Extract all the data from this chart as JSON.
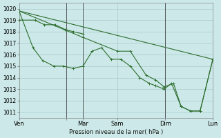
{
  "background_color": "#cce8e8",
  "grid_color": "#aacccc",
  "line_color": "#2d6e2d",
  "marker_color": "#2d6e2d",
  "xlabel": "Pression niveau de la mer( hPa )",
  "ylim": [
    1010.5,
    1020.5
  ],
  "yticks": [
    1011,
    1012,
    1013,
    1014,
    1015,
    1016,
    1017,
    1018,
    1019,
    1020
  ],
  "xlim": [
    0,
    1.0
  ],
  "xtick_positions": [
    0.0,
    0.245,
    0.33,
    0.508,
    0.754,
    1.0
  ],
  "xtick_labels": [
    "Ven",
    "",
    "Mar",
    "Sam",
    "Dim",
    "Lun"
  ],
  "vlines_x": [
    0.245,
    0.33,
    0.754
  ],
  "series_diagonal": {
    "x": [
      0.0,
      1.0
    ],
    "y": [
      1019.8,
      1015.6
    ]
  },
  "series_main": {
    "x": [
      0.0,
      0.072,
      0.121,
      0.18,
      0.23,
      0.279,
      0.33,
      0.377,
      0.426,
      0.475,
      0.525,
      0.574,
      0.623,
      0.672,
      0.705,
      0.748,
      0.787,
      0.836,
      0.885,
      0.934,
      1.0
    ],
    "y": [
      1019.8,
      1016.6,
      1015.5,
      1015.0,
      1015.0,
      1014.8,
      1015.0,
      1016.3,
      1016.6,
      1015.6,
      1015.6,
      1015.0,
      1014.0,
      1013.5,
      1013.3,
      1013.0,
      1013.5,
      1011.5,
      1011.1,
      1011.1,
      1015.6
    ]
  },
  "series_mid": {
    "x": [
      0.0,
      0.33,
      0.508,
      0.574,
      0.656,
      0.705,
      0.748,
      0.797,
      0.836,
      0.885,
      0.934,
      1.0
    ],
    "y": [
      1019.8,
      1017.5,
      1016.3,
      1016.3,
      1014.2,
      1013.8,
      1013.2,
      1013.5,
      1011.5,
      1011.1,
      1011.1,
      1015.6
    ]
  },
  "series_top": {
    "x": [
      0.0,
      0.082,
      0.131,
      0.187,
      0.236,
      0.279,
      0.33
    ],
    "y": [
      1019.0,
      1019.0,
      1018.6,
      1018.6,
      1018.2,
      1018.0,
      1017.8
    ]
  }
}
